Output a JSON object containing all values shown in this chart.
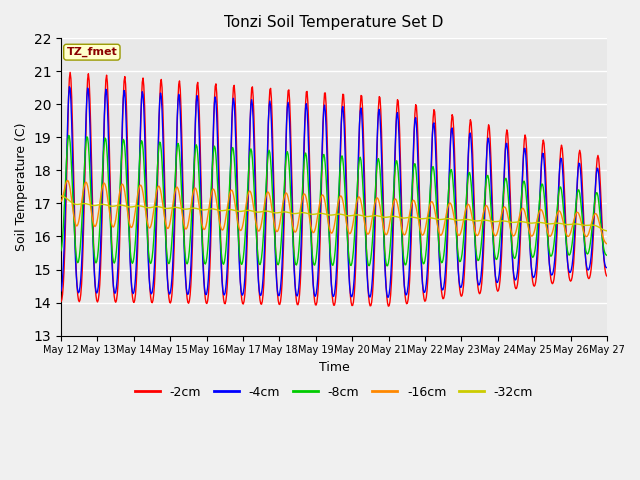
{
  "title": "Tonzi Soil Temperature Set D",
  "xlabel": "Time",
  "ylabel": "Soil Temperature (C)",
  "annotation": "TZ_fmet",
  "ylim": [
    13.0,
    22.0
  ],
  "yticks": [
    13.0,
    14.0,
    15.0,
    16.0,
    17.0,
    18.0,
    19.0,
    20.0,
    21.0,
    22.0
  ],
  "x_labels": [
    "May 12",
    "May 13",
    "May 14",
    "May 15",
    "May 16",
    "May 17",
    "May 18",
    "May 19",
    "May 20",
    "May 21",
    "May 22",
    "May 23",
    "May 24",
    "May 25",
    "May 26",
    "May 27"
  ],
  "series_colors": [
    "#ff0000",
    "#0000ff",
    "#00cc00",
    "#ff8800",
    "#cccc00"
  ],
  "series_labels": [
    "-2cm",
    "-4cm",
    "-8cm",
    "-16cm",
    "-32cm"
  ],
  "plot_bg_color": "#e8e8e8",
  "fig_bg_color": "#f0f0f0",
  "grid_color": "#ffffff",
  "days": 15,
  "n_points": 720
}
